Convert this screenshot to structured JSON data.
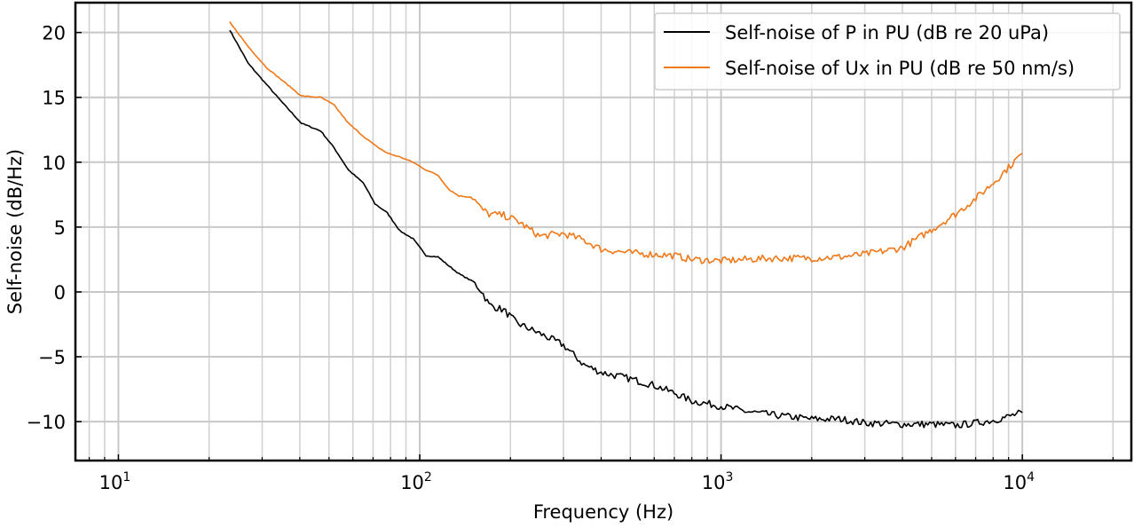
{
  "chart_data": {
    "type": "line",
    "title": "",
    "xlabel": "Frequency (Hz)",
    "ylabel": "Self-noise (dB/Hz)",
    "xscale": "log",
    "xlim": [
      7.2,
      23000
    ],
    "ylim": [
      -13,
      22.3
    ],
    "xticks": [
      {
        "value": 10,
        "base": "10",
        "exp": "1"
      },
      {
        "value": 100,
        "base": "10",
        "exp": "2"
      },
      {
        "value": 1000,
        "base": "10",
        "exp": "3"
      },
      {
        "value": 10000,
        "base": "10",
        "exp": "4"
      }
    ],
    "yticks": [
      {
        "value": 20,
        "label": "20"
      },
      {
        "value": 15,
        "label": "15"
      },
      {
        "value": 10,
        "label": "10"
      },
      {
        "value": 5,
        "label": "5"
      },
      {
        "value": 0,
        "label": "0"
      },
      {
        "value": -5,
        "label": "−5"
      },
      {
        "value": -10,
        "label": "−10"
      }
    ],
    "grid": true,
    "legend_position": "top-right",
    "series": [
      {
        "name": "Self-noise of P in PU (dB re 20 uPa)",
        "color": "#000000",
        "x": [
          23.4,
          27,
          31,
          35,
          40.5,
          47,
          52,
          58,
          65,
          71,
          78,
          86,
          95,
          105,
          115,
          125,
          135,
          150,
          160,
          170,
          190,
          210,
          250,
          300,
          350,
          400,
          500,
          600,
          700,
          800,
          1000,
          1200,
          1500,
          2000,
          2500,
          3000,
          4000,
          5000,
          6000,
          7000,
          8000,
          9000,
          10000
        ],
        "y": [
          20.2,
          17.6,
          16,
          14.6,
          13.0,
          12.4,
          11.1,
          9.4,
          8.4,
          6.8,
          6.1,
          4.7,
          4.1,
          2.8,
          2.7,
          2.0,
          1.4,
          0.8,
          0.1,
          -1.0,
          -1.4,
          -2.4,
          -3.2,
          -4.1,
          -5.6,
          -6.2,
          -6.7,
          -7.2,
          -7.8,
          -8.4,
          -8.8,
          -9.2,
          -9.5,
          -9.8,
          -9.8,
          -10.1,
          -10.2,
          -10.2,
          -10.3,
          -10.1,
          -9.9,
          -9.6,
          -9.3
        ]
      },
      {
        "name": "Self-noise of Ux in PU (dB re 50 nm/s)",
        "color": "#f07818",
        "x": [
          23.4,
          27,
          31,
          35,
          40.5,
          47,
          52,
          58,
          65,
          71,
          78,
          86,
          95,
          105,
          115,
          125,
          135,
          150,
          160,
          170,
          190,
          210,
          250,
          300,
          350,
          400,
          500,
          600,
          700,
          800,
          1000,
          1200,
          1500,
          2000,
          2500,
          3000,
          4000,
          5000,
          6000,
          7000,
          8000,
          9000,
          10000
        ],
        "y": [
          20.8,
          18.9,
          17.3,
          16.3,
          15.1,
          15.0,
          14.4,
          13.0,
          12.0,
          11.3,
          10.7,
          10.4,
          10.0,
          9.4,
          9.0,
          7.9,
          7.4,
          7.3,
          6.4,
          6.0,
          5.9,
          5.5,
          4.3,
          4.5,
          4.0,
          3.3,
          3.0,
          2.9,
          2.8,
          2.5,
          2.4,
          2.5,
          2.6,
          2.6,
          2.7,
          2.9,
          3.4,
          4.8,
          6.0,
          7.2,
          8.4,
          9.6,
          10.7
        ]
      }
    ]
  }
}
